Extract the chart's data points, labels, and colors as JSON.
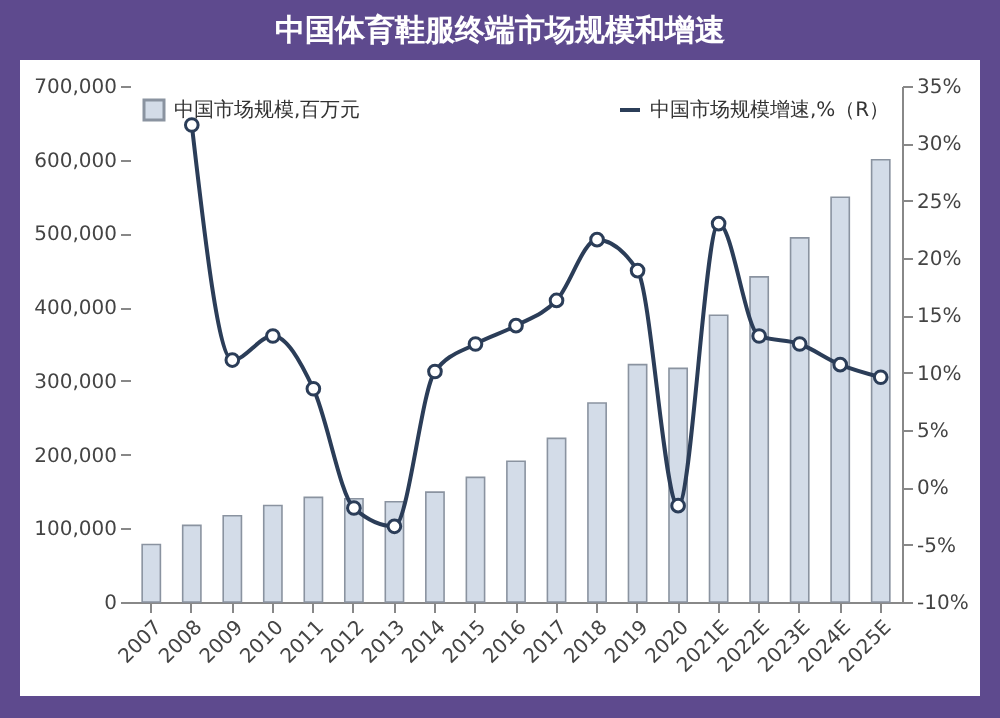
{
  "chart_data": {
    "type": "bar",
    "title": "中国体育鞋服终端市场规模和增速",
    "categories": [
      "2007",
      "2008",
      "2009",
      "2010",
      "2011",
      "2012",
      "2013",
      "2014",
      "2015",
      "2016",
      "2017",
      "2018",
      "2019",
      "2020",
      "2021E",
      "2022E",
      "2023E",
      "2024E",
      "2025E"
    ],
    "series": [
      {
        "name": "中国市场规模,百万元",
        "color": "#d3dce8",
        "values": [
          78000,
          104000,
          117000,
          131000,
          142000,
          140000,
          136000,
          149000,
          169000,
          191000,
          222000,
          270000,
          322000,
          317000,
          389000,
          441000,
          494000,
          549000,
          600000
        ]
      },
      {
        "name": "中国市场规模增速,%（R）",
        "type": "line",
        "axis": "y2",
        "color": "#2b3d58",
        "values": [
          null,
          31.6,
          11.1,
          13.2,
          8.6,
          -1.8,
          -3.4,
          10.1,
          12.5,
          14.1,
          16.3,
          21.6,
          18.9,
          -1.6,
          23.0,
          13.2,
          12.5,
          10.7,
          9.6
        ]
      }
    ],
    "ylim": [
      0,
      700000
    ],
    "yticks": [
      {
        "value": 0,
        "label": "0"
      },
      {
        "value": 100000,
        "label": "100,000"
      },
      {
        "value": 200000,
        "label": "200,000"
      },
      {
        "value": 300000,
        "label": "300,000"
      },
      {
        "value": 400000,
        "label": "400,000"
      },
      {
        "value": 500000,
        "label": "500,000"
      },
      {
        "value": 600000,
        "label": "600,000"
      },
      {
        "value": 700000,
        "label": "700,000"
      }
    ],
    "y2lim": [
      -10,
      35
    ],
    "y2ticks": [
      {
        "value": -10,
        "label": "-10%"
      },
      {
        "value": -5,
        "label": "-5%"
      },
      {
        "value": 0,
        "label": "0%"
      },
      {
        "value": 5,
        "label": "5%"
      },
      {
        "value": 10,
        "label": "10%"
      },
      {
        "value": 15,
        "label": "15%"
      },
      {
        "value": 20,
        "label": "20%"
      },
      {
        "value": 25,
        "label": "25%"
      },
      {
        "value": 30,
        "label": "30%"
      },
      {
        "value": 35,
        "label": "35%"
      }
    ],
    "marker": "circle",
    "legend": "top",
    "grid": false
  }
}
